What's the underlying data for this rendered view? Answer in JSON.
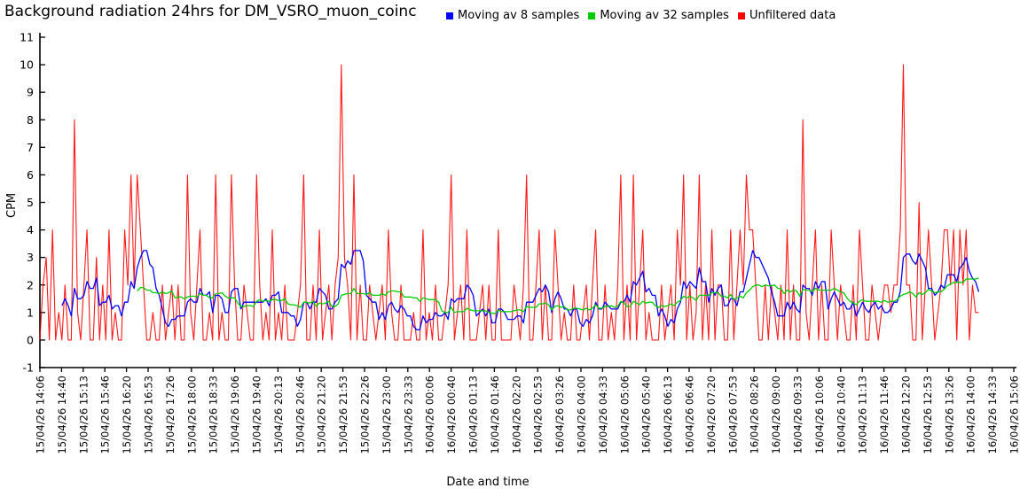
{
  "chart_data": {
    "type": "line",
    "title": "Background radiation 24hrs for DM_VSRO_muon_coinc",
    "xlabel": "Date and time",
    "ylabel": "CPM",
    "ylim": [
      -1,
      11
    ],
    "y_ticks": [
      -1,
      0,
      1,
      2,
      3,
      4,
      5,
      6,
      7,
      8,
      9,
      10,
      11
    ],
    "grid": false,
    "legend_position": "top-right",
    "axis_color": "#000000",
    "x_data_end_fraction": 0.964,
    "x_tick_labels": [
      "15/04/26 14:06",
      "15/04/26 14:40",
      "15/04/26 15:13",
      "15/04/26 15:46",
      "15/04/26 16:20",
      "15/04/26 16:53",
      "15/04/26 17:26",
      "15/04/26 18:00",
      "15/04/26 18:33",
      "15/04/26 19:06",
      "15/04/26 19:40",
      "15/04/26 20:13",
      "15/04/26 20:46",
      "15/04/26 21:20",
      "15/04/26 21:53",
      "15/04/26 22:26",
      "15/04/26 23:00",
      "15/04/26 23:33",
      "16/04/26 00:06",
      "16/04/26 00:40",
      "16/04/26 01:13",
      "16/04/26 01:46",
      "16/04/26 02:20",
      "16/04/26 02:53",
      "16/04/26 03:26",
      "16/04/26 04:00",
      "16/04/26 04:33",
      "16/04/26 05:06",
      "16/04/26 05:40",
      "16/04/26 06:13",
      "16/04/26 06:46",
      "16/04/26 07:20",
      "16/04/26 07:53",
      "16/04/26 08:26",
      "16/04/26 09:00",
      "16/04/26 09:33",
      "16/04/26 10:06",
      "16/04/26 10:40",
      "16/04/26 11:13",
      "16/04/26 11:46",
      "16/04/26 12:20",
      "16/04/26 12:53",
      "16/04/26 13:26",
      "16/04/26 14:00",
      "16/04/26 14:33",
      "16/04/26 15:06"
    ],
    "series": [
      {
        "name": "Moving av 8 samples",
        "color": "#0000ff",
        "type": "moving_average",
        "window": 8
      },
      {
        "name": "Moving av 32 samples",
        "color": "#00cc00",
        "type": "moving_average",
        "window": 32
      },
      {
        "name": "Unfiltered data",
        "color": "#ff0000",
        "type": "raw",
        "values": [
          0,
          2,
          3,
          0,
          4,
          0,
          1,
          0,
          2,
          0,
          0,
          8,
          1,
          0,
          2,
          4,
          0,
          0,
          3,
          0,
          2,
          0,
          4,
          0,
          1,
          0,
          0,
          4,
          2,
          6,
          2,
          6,
          4,
          2,
          0,
          0,
          1,
          0,
          0,
          2,
          0,
          1,
          2,
          0,
          2,
          0,
          0,
          6,
          1,
          0,
          2,
          4,
          0,
          0,
          1,
          0,
          6,
          0,
          1,
          0,
          0,
          6,
          2,
          0,
          0,
          2,
          1,
          0,
          0,
          6,
          2,
          0,
          1,
          0,
          4,
          0,
          1,
          0,
          2,
          0,
          0,
          0,
          1,
          2,
          6,
          0,
          0,
          2,
          0,
          4,
          0,
          1,
          2,
          0,
          2,
          3,
          10,
          3,
          2,
          0,
          6,
          0,
          2,
          0,
          0,
          2,
          1,
          0,
          1,
          2,
          0,
          4,
          1,
          0,
          0,
          2,
          0,
          0,
          0,
          1,
          0,
          0,
          4,
          0,
          1,
          0,
          2,
          0,
          0,
          1,
          2,
          6,
          0,
          1,
          2,
          0,
          4,
          0,
          0,
          0,
          1,
          2,
          0,
          2,
          0,
          0,
          4,
          0,
          0,
          0,
          0,
          2,
          1,
          0,
          2,
          6,
          0,
          0,
          2,
          4,
          0,
          2,
          0,
          0,
          4,
          2,
          0,
          1,
          0,
          0,
          2,
          0,
          0,
          1,
          2,
          0,
          2,
          4,
          0,
          0,
          2,
          0,
          1,
          0,
          2,
          6,
          0,
          2,
          0,
          6,
          0,
          2,
          4,
          0,
          1,
          0,
          0,
          0,
          2,
          0,
          1,
          2,
          0,
          4,
          2,
          6,
          0,
          2,
          0,
          1,
          6,
          0,
          2,
          0,
          4,
          0,
          2,
          2,
          0,
          0,
          4,
          0,
          2,
          4,
          2,
          6,
          4,
          4,
          2,
          0,
          0,
          2,
          0,
          2,
          1,
          0,
          2,
          0,
          4,
          0,
          2,
          0,
          0,
          8,
          1,
          0,
          2,
          4,
          0,
          2,
          0,
          0,
          4,
          2,
          0,
          2,
          1,
          0,
          0,
          2,
          0,
          4,
          2,
          0,
          0,
          2,
          1,
          0,
          1,
          2,
          2,
          1,
          2,
          2,
          4,
          10,
          2,
          2,
          0,
          0,
          5,
          0,
          2,
          4,
          2,
          0,
          1,
          2,
          4,
          4,
          2,
          4,
          0,
          4,
          2,
          4,
          0,
          2,
          1,
          1
        ]
      }
    ]
  }
}
